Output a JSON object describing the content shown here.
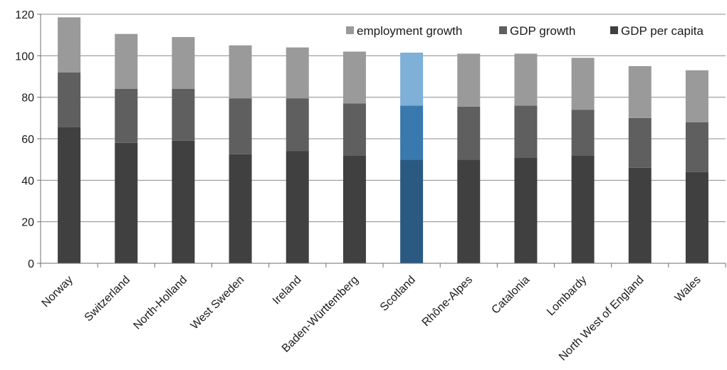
{
  "chart_data": {
    "type": "bar",
    "stacked": true,
    "categories": [
      "Norway",
      "Switzerland",
      "North-Holland",
      "West Sweden",
      "Ireland",
      "Baden-Württemberg",
      "Scotland",
      "Rhône-Alpes",
      "Catalonia",
      "Lombardy",
      "North West of England",
      "Wales"
    ],
    "series": [
      {
        "name": "GDP per capita",
        "color": "#404040",
        "values": [
          65.5,
          58,
          59,
          52.5,
          54,
          52,
          50,
          50,
          51,
          52,
          46,
          44
        ]
      },
      {
        "name": "GDP growth",
        "color": "#5f5f5f",
        "values": [
          26.5,
          26,
          25,
          27,
          25.5,
          25,
          26,
          25.5,
          25,
          22,
          24,
          24
        ]
      },
      {
        "name": "employment growth",
        "color": "#9a9a9a",
        "values": [
          26.5,
          26.5,
          25,
          25.5,
          24.5,
          25,
          25.5,
          25.5,
          25,
          25,
          25,
          25
        ]
      }
    ],
    "highlight": {
      "category": "Scotland",
      "colors": {
        "GDP per capita": "#2a5a82",
        "GDP growth": "#3979ae",
        "employment growth": "#7eb0d8"
      }
    },
    "legend_order": [
      "employment growth",
      "GDP growth",
      "GDP per capita"
    ],
    "legend_position": "top-right",
    "yticks": [
      0,
      20,
      40,
      60,
      80,
      100,
      120
    ],
    "ylim": [
      0,
      120
    ],
    "grid": true,
    "title": "",
    "xlabel": "",
    "ylabel": ""
  }
}
